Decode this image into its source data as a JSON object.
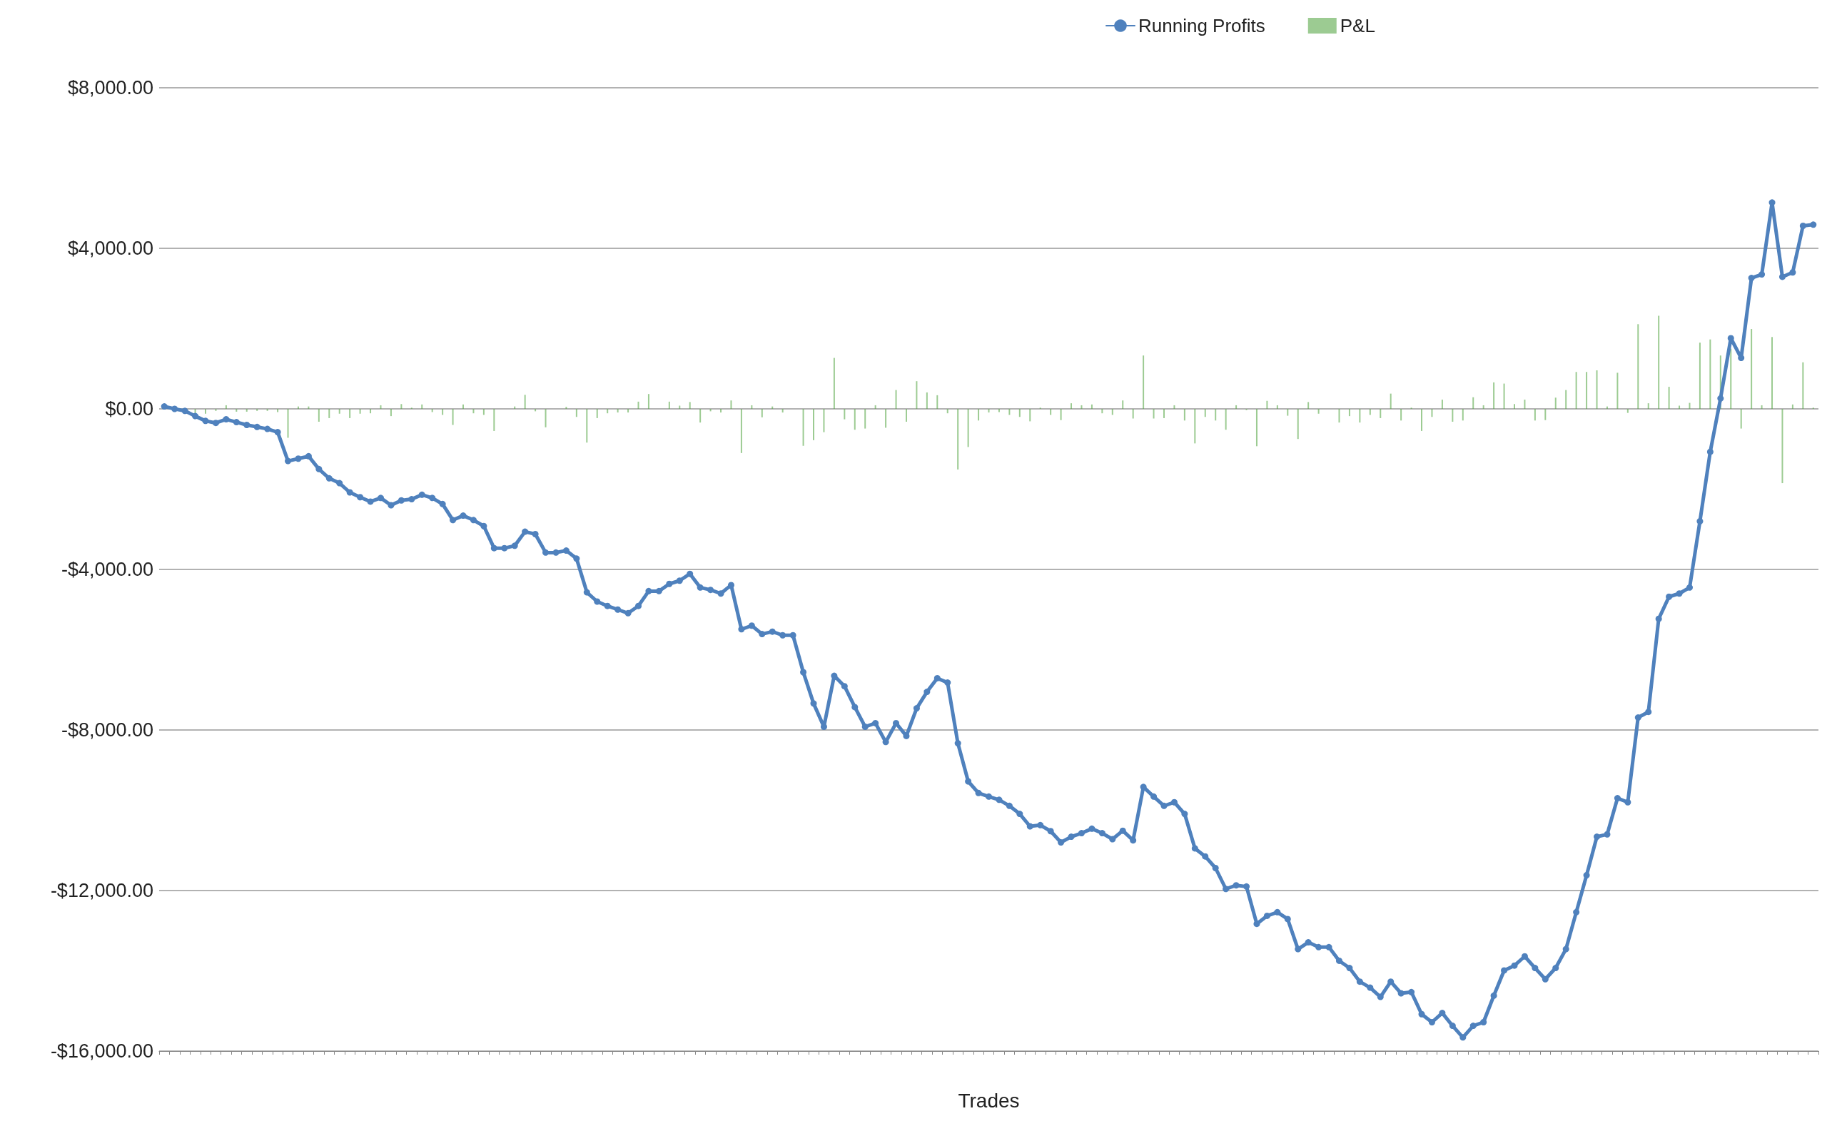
{
  "chart_data": {
    "type": "line",
    "xlabel": "Trades",
    "categories": [
      null,
      null,
      null,
      null,
      null,
      null,
      null,
      null,
      null,
      null,
      null,
      null,
      null,
      null,
      null,
      null,
      null,
      null,
      null,
      null,
      null,
      null,
      null,
      null,
      null,
      null,
      null,
      null,
      null,
      null,
      null,
      null,
      null,
      null,
      null,
      null,
      null,
      null,
      null,
      null,
      null,
      null,
      null,
      null,
      null,
      null,
      null,
      null,
      null,
      null,
      null,
      null,
      null,
      null,
      null,
      null,
      null,
      null,
      null,
      null,
      null,
      null,
      null,
      null,
      null,
      null,
      null,
      null,
      null,
      null,
      null,
      null,
      null,
      null,
      null,
      null,
      null,
      null,
      null,
      null,
      null,
      null,
      null,
      null,
      null,
      null,
      null,
      null,
      null,
      null,
      null,
      null,
      null,
      null,
      null,
      null,
      null,
      null,
      null,
      null,
      null,
      null,
      null,
      null,
      null,
      null,
      null,
      null,
      null,
      null,
      null,
      null,
      null,
      null,
      null,
      null,
      null,
      null,
      null,
      null,
      null,
      null,
      null,
      null,
      null,
      null,
      null,
      null,
      null,
      null,
      null,
      null,
      null,
      null,
      null,
      null,
      null,
      null,
      null,
      null,
      null,
      null,
      null,
      null,
      null,
      null,
      null,
      null,
      null,
      null,
      null,
      null,
      null,
      null,
      null,
      null,
      null,
      null,
      null,
      null,
      null
    ],
    "series": [
      {
        "name": "Running Profits",
        "color": "#4f81bd",
        "values": [
          60,
          0,
          -50,
          -180,
          -300,
          -350,
          -260,
          -330,
          -400,
          -450,
          -500,
          -580,
          -1300,
          -1240,
          -1180,
          -1500,
          -1730,
          -1850,
          -2080,
          -2200,
          -2310,
          -2220,
          -2400,
          -2280,
          -2250,
          -2140,
          -2220,
          -2370,
          -2770,
          -2660,
          -2770,
          -2920,
          -3470,
          -3470,
          -3410,
          -3060,
          -3120,
          -3580,
          -3580,
          -3530,
          -3730,
          -4570,
          -4800,
          -4910,
          -5000,
          -5090,
          -4910,
          -4540,
          -4540,
          -4360,
          -4280,
          -4110,
          -4450,
          -4510,
          -4600,
          -4390,
          -5490,
          -5400,
          -5610,
          -5550,
          -5640,
          -5640,
          -6560,
          -7340,
          -7920,
          -6650,
          -6910,
          -7430,
          -7920,
          -7830,
          -8300,
          -7830,
          -8150,
          -7460,
          -7050,
          -6710,
          -6820,
          -8330,
          -9280,
          -9570,
          -9660,
          -9740,
          -9890,
          -10090,
          -10400,
          -10370,
          -10520,
          -10800,
          -10660,
          -10570,
          -10460,
          -10570,
          -10720,
          -10510,
          -10750,
          -9420,
          -9660,
          -9890,
          -9800,
          -10090,
          -10950,
          -11150,
          -11440,
          -11960,
          -11870,
          -11900,
          -12830,
          -12630,
          -12540,
          -12710,
          -13460,
          -13290,
          -13410,
          -13410,
          -13750,
          -13930,
          -14270,
          -14420,
          -14650,
          -14270,
          -14560,
          -14530,
          -15080,
          -15280,
          -15050,
          -15370,
          -15660,
          -15370,
          -15280,
          -14620,
          -13990,
          -13870,
          -13640,
          -13930,
          -14210,
          -13930,
          -13460,
          -12540,
          -11620,
          -10660,
          -10600,
          -9700,
          -9800,
          -7690,
          -7550,
          -5230,
          -4680,
          -4600,
          -4450,
          -2800,
          -1070,
          260,
          1760,
          1270,
          3260,
          3350,
          5140,
          3290,
          3400,
          4560,
          4590
        ]
      },
      {
        "name": "P&L",
        "type": "bar",
        "color": "#5aa84a",
        "values": [
          null,
          null,
          null,
          -130,
          -120,
          -50,
          90,
          -70,
          -70,
          -50,
          -50,
          -80,
          -720,
          60,
          60,
          -320,
          -230,
          -120,
          -230,
          -120,
          -110,
          90,
          -180,
          120,
          30,
          110,
          -80,
          -150,
          -400,
          110,
          -110,
          -150,
          -550,
          0,
          60,
          350,
          -60,
          -460,
          0,
          50,
          -200,
          -840,
          -230,
          -110,
          -90,
          -90,
          180,
          370,
          0,
          180,
          80,
          170,
          -340,
          -60,
          -90,
          210,
          -1100,
          90,
          -210,
          60,
          -90,
          0,
          -920,
          -780,
          -580,
          1270,
          -260,
          -520,
          -490,
          90,
          -470,
          470,
          -320,
          690,
          410,
          340,
          -110,
          -1510,
          -950,
          -290,
          -90,
          -80,
          -150,
          -200,
          -310,
          30,
          -150,
          -280,
          140,
          90,
          110,
          -110,
          -150,
          210,
          -240,
          1330,
          -240,
          -230,
          90,
          -290,
          -860,
          -200,
          -290,
          -520,
          90,
          -30,
          -930,
          200,
          90,
          -170,
          -750,
          170,
          -120,
          0,
          -340,
          -180,
          -340,
          -150,
          -230,
          380,
          -290,
          30,
          -550,
          -200,
          230,
          -320,
          -290,
          290,
          90,
          660,
          630,
          120,
          230,
          -290,
          -280,
          280,
          470,
          920,
          920,
          960,
          60,
          900,
          -100,
          2110,
          140,
          2320,
          550,
          80,
          150,
          1650,
          1730,
          1330,
          1500,
          -490,
          1990,
          90,
          1790,
          -1850,
          110,
          1160,
          30
        ]
      }
    ],
    "ylim": [
      -16000,
      8000
    ],
    "yticks": [
      {
        "value": -16000,
        "label": "-$16,000.00"
      },
      {
        "value": -12000,
        "label": "-$12,000.00"
      },
      {
        "value": -8000,
        "label": "-$8,000.00"
      },
      {
        "value": -4000,
        "label": "-$4,000.00"
      },
      {
        "value": 0,
        "label": "$0.00"
      },
      {
        "value": 4000,
        "label": "$4,000.00"
      },
      {
        "value": 8000,
        "label": "$8,000.00"
      }
    ],
    "grid": "y",
    "legend": "top",
    "marker": "circle",
    "line_style": "solid"
  }
}
